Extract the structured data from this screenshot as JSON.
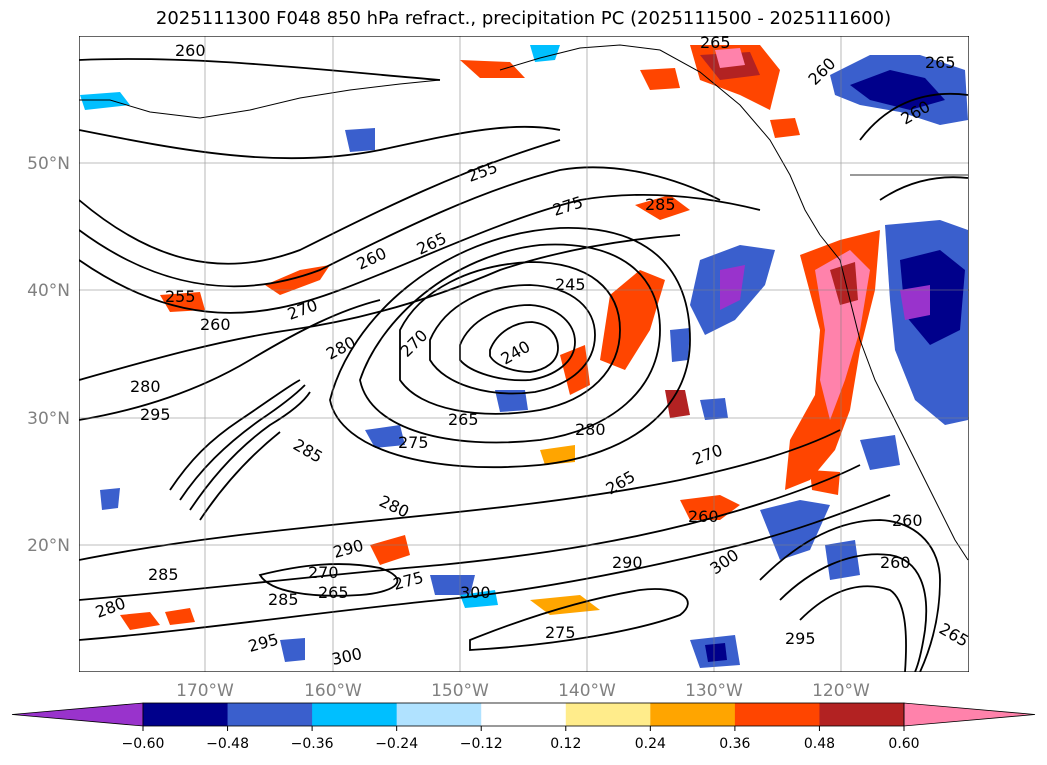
{
  "title": "2025111300 F048 850 hPa refract., precipitation PC (2025111500 - 2025111600)",
  "map": {
    "lat_labels": [
      "50°N",
      "40°N",
      "30°N",
      "20°N"
    ],
    "lon_labels": [
      "170°W",
      "160°W",
      "150°W",
      "140°W",
      "130°W",
      "120°W"
    ],
    "contour_labels": [
      "260",
      "265",
      "270",
      "275",
      "280",
      "285",
      "290",
      "295",
      "300",
      "255",
      "245",
      "240"
    ]
  },
  "colorbar": {
    "ticks": [
      "−0.60",
      "−0.48",
      "−0.36",
      "−0.24",
      "−0.12",
      "0.12",
      "0.24",
      "0.36",
      "0.48",
      "0.60"
    ],
    "colors": [
      "#9933cc",
      "#00008b",
      "#3a5fcd",
      "#00bfff",
      "#b0e2ff",
      "#ffffff",
      "#ffec8b",
      "#ffa500",
      "#ff4500",
      "#b22222",
      "#ff82ab"
    ]
  },
  "colors": {
    "contour": "#000000",
    "grid": "#808080",
    "axis_label": "#808080"
  }
}
